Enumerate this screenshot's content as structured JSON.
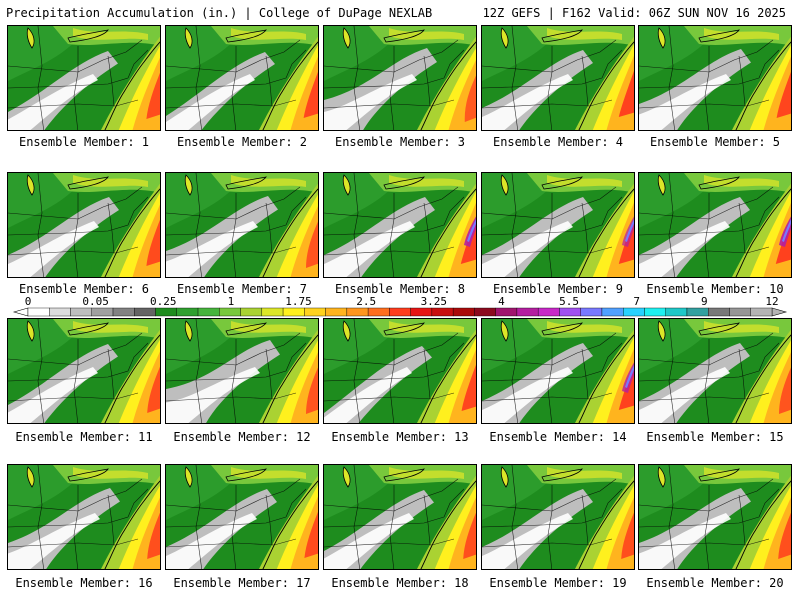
{
  "header": {
    "title": "Precipitation Accumulation (in.) | College of DuPage NEXLAB",
    "run_info": "12Z GEFS | F162 Valid: 06Z SUN NOV 16 2025"
  },
  "legend": {
    "ticks": [
      "0",
      "0.05",
      "0.25",
      "1",
      "1.75",
      "2.5",
      "3.25",
      "4",
      "5.5",
      "7",
      "9",
      "12"
    ],
    "colors": [
      "#ffffff",
      "#dcdcdc",
      "#bebebe",
      "#a0a0a0",
      "#828282",
      "#646464",
      "#1e8c1e",
      "#2fa02f",
      "#46b43c",
      "#78c83c",
      "#aad232",
      "#dce628",
      "#fff01e",
      "#ffd21e",
      "#ffb41e",
      "#ff961e",
      "#ff6e1e",
      "#ff3c1e",
      "#e61414",
      "#c80f0f",
      "#aa0a0a",
      "#8c0a1e",
      "#a0146e",
      "#b41ea0",
      "#c828c8",
      "#a050f0",
      "#7878ff",
      "#50a0ff",
      "#28d2ff",
      "#1ef0f0",
      "#1ec8c8",
      "#32a0a0",
      "#787878",
      "#969696",
      "#b4b4b4"
    ]
  },
  "panels": [
    {
      "label": "Ensemble Member: 1",
      "gray": 0.5,
      "core": 0.7,
      "magenta": 0.0
    },
    {
      "label": "Ensemble Member: 2",
      "gray": 0.4,
      "core": 0.8,
      "magenta": 0.0
    },
    {
      "label": "Ensemble Member: 3",
      "gray": 0.8,
      "core": 0.4,
      "magenta": 0.0
    },
    {
      "label": "Ensemble Member: 4",
      "gray": 0.6,
      "core": 0.9,
      "magenta": 0.0
    },
    {
      "label": "Ensemble Member: 5",
      "gray": 0.7,
      "core": 0.8,
      "magenta": 0.0
    },
    {
      "label": "Ensemble Member: 6",
      "gray": 0.6,
      "core": 0.7,
      "magenta": 0.0
    },
    {
      "label": "Ensemble Member: 7",
      "gray": 0.7,
      "core": 0.5,
      "magenta": 0.0
    },
    {
      "label": "Ensemble Member: 8",
      "gray": 0.6,
      "core": 0.9,
      "magenta": 0.6
    },
    {
      "label": "Ensemble Member: 9",
      "gray": 0.6,
      "core": 0.9,
      "magenta": 0.4
    },
    {
      "label": "Ensemble Member: 10",
      "gray": 0.6,
      "core": 0.9,
      "magenta": 0.6
    },
    {
      "label": "Ensemble Member: 11",
      "gray": 0.5,
      "core": 0.6,
      "magenta": 0.0
    },
    {
      "label": "Ensemble Member: 12",
      "gray": 0.9,
      "core": 0.5,
      "magenta": 0.0
    },
    {
      "label": "Ensemble Member: 13",
      "gray": 0.3,
      "core": 0.8,
      "magenta": 0.0
    },
    {
      "label": "Ensemble Member: 14",
      "gray": 0.6,
      "core": 0.9,
      "magenta": 0.5
    },
    {
      "label": "Ensemble Member: 15",
      "gray": 0.6,
      "core": 0.5,
      "magenta": 0.0
    },
    {
      "label": "Ensemble Member: 16",
      "gray": 0.7,
      "core": 0.6,
      "magenta": 0.0
    },
    {
      "label": "Ensemble Member: 17",
      "gray": 0.6,
      "core": 0.7,
      "magenta": 0.0
    },
    {
      "label": "Ensemble Member: 18",
      "gray": 0.5,
      "core": 0.6,
      "magenta": 0.0
    },
    {
      "label": "Ensemble Member: 19",
      "gray": 0.6,
      "core": 0.6,
      "magenta": 0.0
    },
    {
      "label": "Ensemble Member: 20",
      "gray": 0.7,
      "core": 0.6,
      "magenta": 0.0
    }
  ]
}
